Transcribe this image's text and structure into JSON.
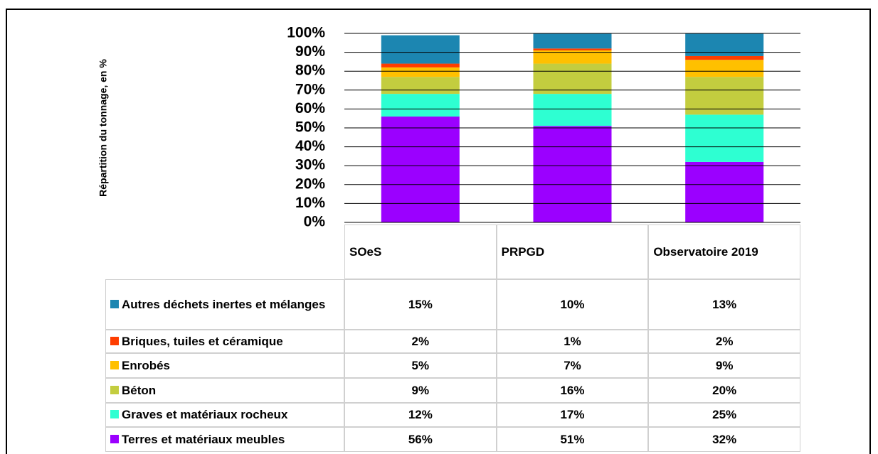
{
  "chart_data": {
    "type": "bar",
    "stacked": true,
    "y_label": "Répartition du tonnage, en %",
    "categories": [
      "SOeS",
      "PRPGD",
      "Observatoire 2019"
    ],
    "series": [
      {
        "name": "Terres et matériaux meubles",
        "color": "#9b00ff",
        "values": [
          56,
          51,
          32
        ],
        "value_labels": [
          "56%",
          "51%",
          "32%"
        ]
      },
      {
        "name": "Graves et matériaux rocheux",
        "color": "#2effd2",
        "values": [
          12,
          17,
          25
        ],
        "value_labels": [
          "12%",
          "17%",
          "25%"
        ]
      },
      {
        "name": "Béton",
        "color": "#c3cd3f",
        "values": [
          9,
          16,
          20
        ],
        "value_labels": [
          "9%",
          "16%",
          "20%"
        ]
      },
      {
        "name": "Enrobés",
        "color": "#ffc000",
        "values": [
          5,
          7,
          9
        ],
        "value_labels": [
          "5%",
          "7%",
          "9%"
        ]
      },
      {
        "name": "Briques, tuiles et céramique",
        "color": "#fe3d00",
        "values": [
          2,
          1,
          2
        ],
        "value_labels": [
          "2%",
          "1%",
          "2%"
        ]
      },
      {
        "name": "Autres déchets inertes et mélanges",
        "color": "#1c86b1",
        "values": [
          15,
          10,
          13
        ],
        "value_labels": [
          "15%",
          "10%",
          "13%"
        ]
      }
    ],
    "ylim": [
      0,
      100
    ],
    "yticks": [
      {
        "value": 0,
        "label": "0%"
      },
      {
        "value": 10,
        "label": "10%"
      },
      {
        "value": 20,
        "label": "20%"
      },
      {
        "value": 30,
        "label": "30%"
      },
      {
        "value": 40,
        "label": "40%"
      },
      {
        "value": 50,
        "label": "50%"
      },
      {
        "value": 60,
        "label": "60%"
      },
      {
        "value": 70,
        "label": "70%"
      },
      {
        "value": 80,
        "label": "80%"
      },
      {
        "value": 90,
        "label": "90%"
      },
      {
        "value": 100,
        "label": "100%"
      }
    ],
    "grid": true
  }
}
